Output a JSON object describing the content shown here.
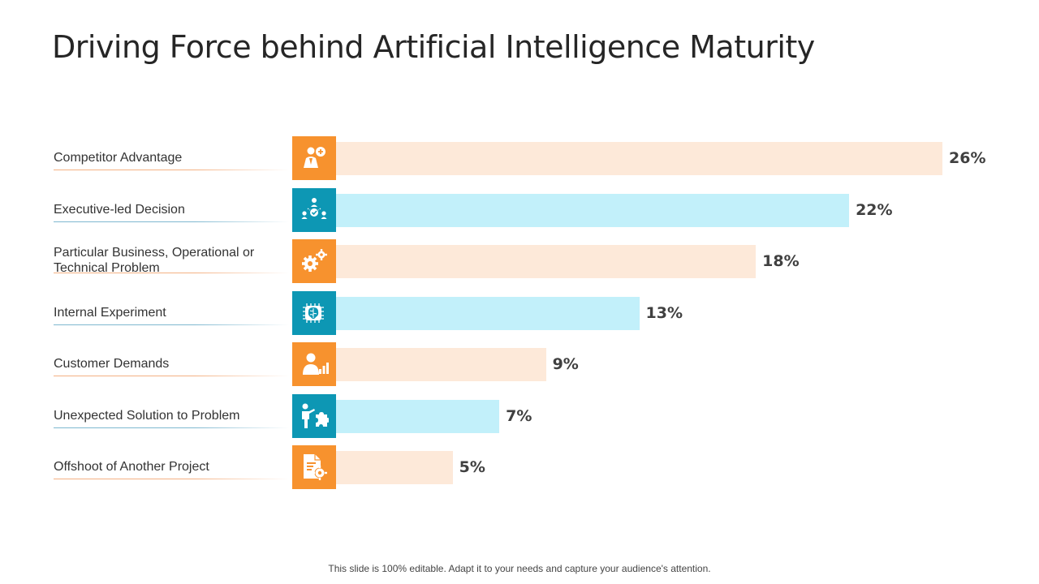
{
  "slide": {
    "title": "Driving Force behind Artificial Intelligence Maturity",
    "footer": "This slide is 100% editable. Adapt it to your needs and capture your audience's attention."
  },
  "colors": {
    "orange": "#f7922e",
    "orange_light": "#fde9d9",
    "teal": "#0d97b4",
    "teal_light": "#c2f0fa",
    "line_orange": "#f4b183",
    "line_teal": "#7fb8d0"
  },
  "chart_data": {
    "type": "bar",
    "orientation": "horizontal",
    "title": "Driving Force behind Artificial Intelligence Maturity",
    "unit": "%",
    "xlim": [
      0,
      26
    ],
    "categories": [
      "Competitor Advantage",
      "Executive-led Decision",
      "Particular Business, Operational or\nTechnical Problem",
      "Internal  Experiment",
      "Customer Demands",
      "Unexpected Solution to Problem",
      "Offshoot  of Another Project"
    ],
    "values": [
      26,
      22,
      18,
      13,
      9,
      7,
      5
    ],
    "value_labels": [
      "26%",
      "22%",
      "18%",
      "13%",
      "9%",
      "7%",
      "5%"
    ],
    "icons": [
      "businessman-plus-icon",
      "team-decision-icon",
      "gears-icon",
      "brain-chip-icon",
      "customer-chart-icon",
      "person-puzzle-icon",
      "document-gear-icon"
    ],
    "color_scheme": [
      "orange",
      "teal",
      "orange",
      "teal",
      "orange",
      "teal",
      "orange"
    ]
  }
}
